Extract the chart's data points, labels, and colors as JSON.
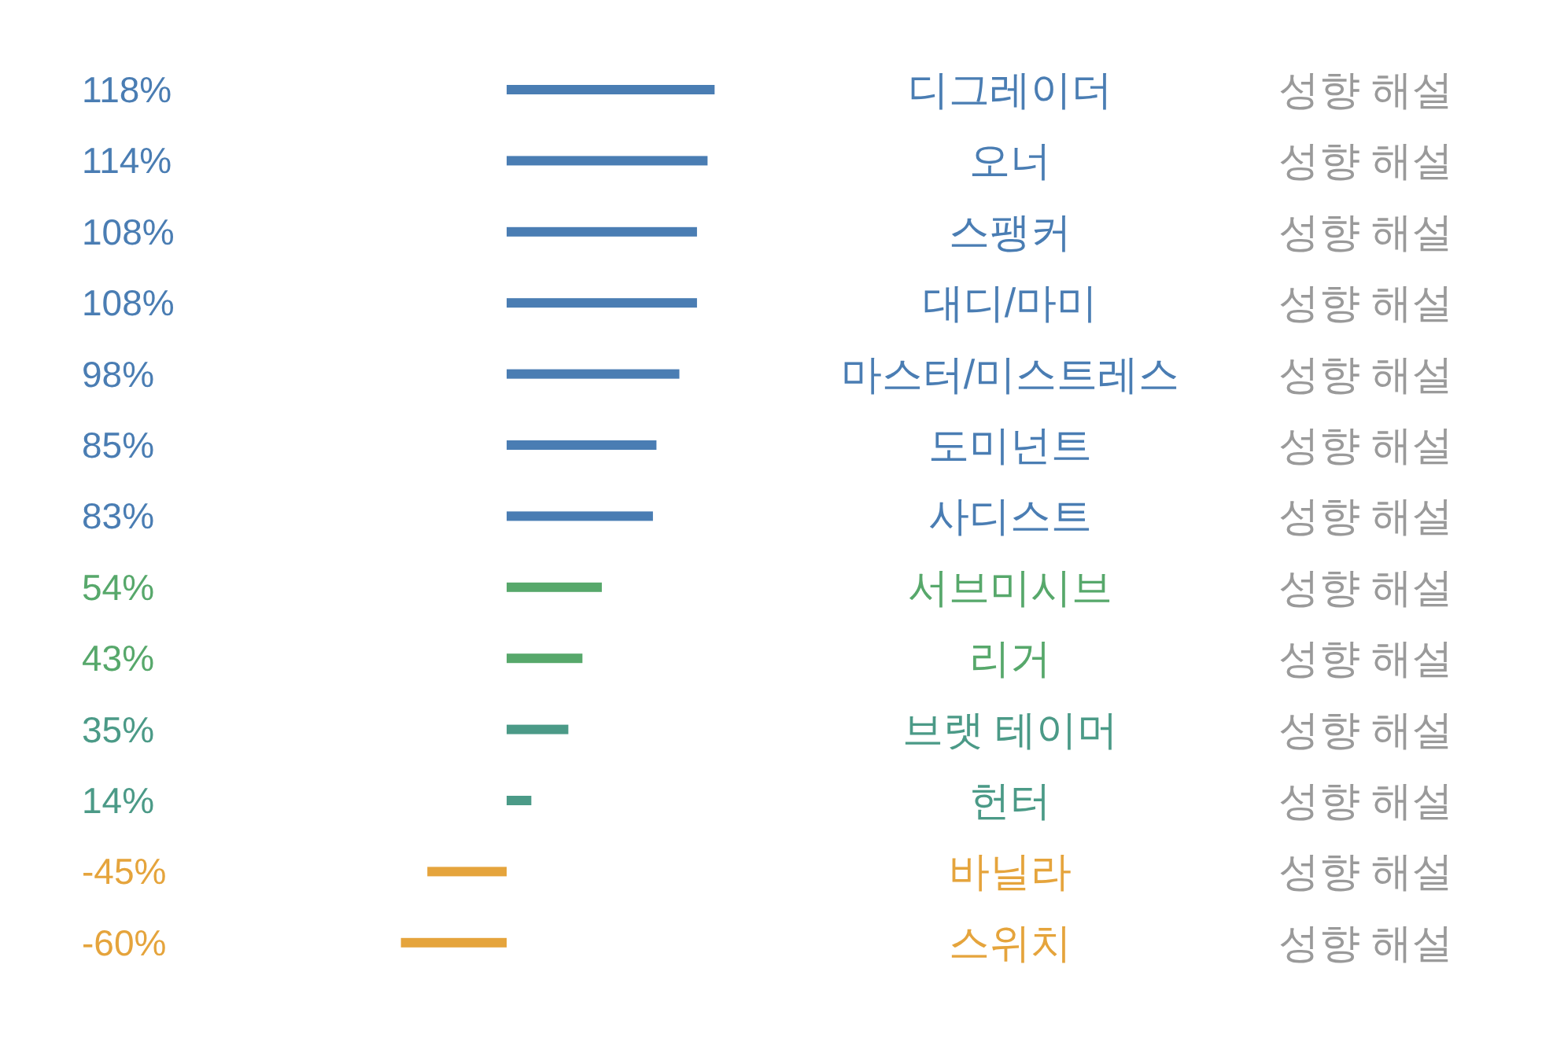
{
  "chart_data": {
    "type": "bar",
    "orientation": "horizontal",
    "categories": [
      "디그레이더",
      "오너",
      "스팽커",
      "대디/마미",
      "마스터/미스트레스",
      "도미넌트",
      "사디스트",
      "서브미시브",
      "리거",
      "브랫 테이머",
      "헌터",
      "바닐라",
      "스위치"
    ],
    "values": [
      118,
      114,
      108,
      108,
      98,
      85,
      83,
      54,
      43,
      35,
      14,
      -45,
      -60
    ],
    "value_labels": [
      "118%",
      "114%",
      "108%",
      "108%",
      "98%",
      "85%",
      "83%",
      "54%",
      "43%",
      "35%",
      "14%",
      "-45%",
      "-60%"
    ],
    "colors": [
      "#4a7db3",
      "#4a7db3",
      "#4a7db3",
      "#4a7db3",
      "#4a7db3",
      "#4a7db3",
      "#4a7db3",
      "#57a86b",
      "#57a86b",
      "#4b9a87",
      "#4b9a87",
      "#e5a43c",
      "#e5a43c"
    ],
    "annotations": [
      "성향 해설",
      "성향 해설",
      "성향 해설",
      "성향 해설",
      "성향 해설",
      "성향 해설",
      "성향 해설",
      "성향 해설",
      "성향 해설",
      "성향 해설",
      "성향 해설",
      "성향 해설",
      "성향 해설"
    ]
  }
}
